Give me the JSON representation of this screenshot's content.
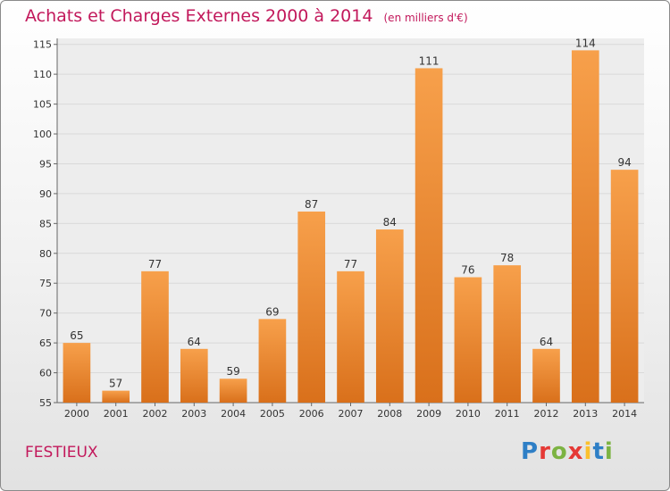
{
  "title": "Achats et Charges Externes 2000 à 2014",
  "unit_note": "(en milliers d'€)",
  "commune": "FESTIEUX",
  "logo": {
    "letters": [
      "P",
      "r",
      "o",
      "x",
      "i",
      "t",
      "i"
    ],
    "colors": [
      "#2e7fc6",
      "#e53935",
      "#7cb342",
      "#e53935",
      "#fbc02d",
      "#2e7fc6",
      "#7cb342"
    ]
  },
  "colors": {
    "title": "#c2185b",
    "bar_light": "#f7a04b",
    "bar_dark": "#d9701b",
    "grid": "#d9d9d9"
  },
  "chart_data": {
    "type": "bar",
    "categories": [
      "2000",
      "2001",
      "2002",
      "2003",
      "2004",
      "2005",
      "2006",
      "2007",
      "2008",
      "2009",
      "2010",
      "2011",
      "2012",
      "2013",
      "2014"
    ],
    "values": [
      65,
      57,
      77,
      64,
      59,
      69,
      87,
      77,
      84,
      111,
      76,
      78,
      64,
      114,
      94
    ],
    "ylim": [
      55,
      116
    ],
    "yticks": [
      55,
      60,
      65,
      70,
      75,
      80,
      85,
      90,
      95,
      100,
      105,
      110,
      115
    ],
    "grid": true,
    "xlabel": "",
    "ylabel": ""
  }
}
